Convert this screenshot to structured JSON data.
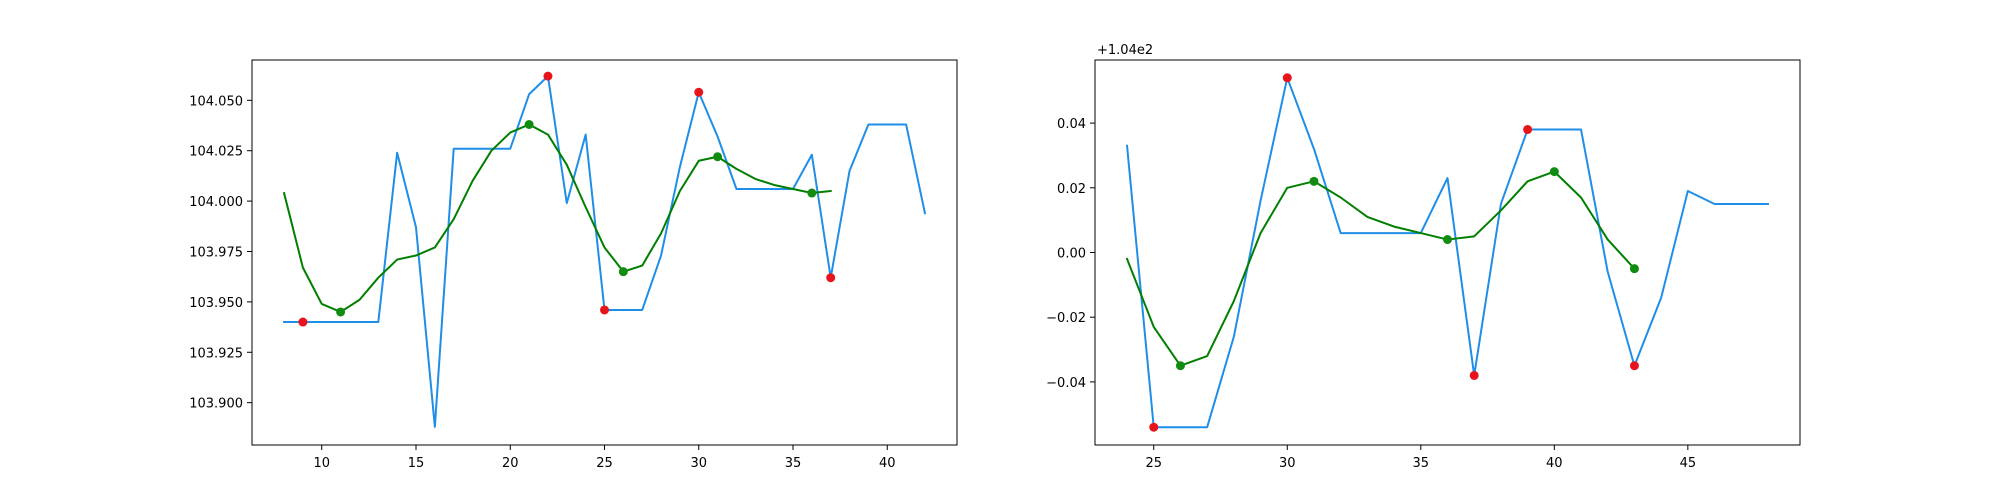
{
  "chart_data": [
    {
      "type": "line",
      "title": "",
      "xlabel": "",
      "ylabel": "",
      "offset_text": "",
      "xlim": [
        6.3,
        43.7
      ],
      "ylim": [
        103.879,
        104.07
      ],
      "xticks": [
        10,
        15,
        20,
        25,
        30,
        35,
        40
      ],
      "yticks": [
        103.9,
        103.925,
        103.95,
        103.975,
        104.0,
        104.025,
        104.05
      ],
      "ytick_labels": [
        "103.900",
        "103.925",
        "103.950",
        "103.975",
        "104.000",
        "104.025",
        "104.050"
      ],
      "grid": false,
      "legend": "none",
      "series": [
        {
          "kind": "line",
          "color": "#1f8ee8",
          "x": [
            8,
            9,
            10,
            11,
            12,
            13,
            14,
            15,
            16,
            17,
            18,
            19,
            20,
            21,
            22,
            23,
            24,
            25,
            26,
            27,
            28,
            29,
            30,
            31,
            32,
            33,
            34,
            35,
            36,
            37,
            38,
            39,
            40,
            41,
            42
          ],
          "y": [
            103.94,
            103.94,
            103.94,
            103.94,
            103.94,
            103.94,
            104.024,
            103.987,
            103.888,
            104.026,
            104.026,
            104.026,
            104.026,
            104.053,
            104.062,
            103.999,
            104.033,
            103.946,
            103.946,
            103.946,
            103.973,
            104.017,
            104.054,
            104.032,
            104.006,
            104.006,
            104.006,
            104.006,
            104.023,
            103.962,
            104.015,
            104.038,
            104.038,
            104.038,
            103.994
          ]
        },
        {
          "kind": "line",
          "color": "#007f00",
          "x": [
            8,
            9,
            10,
            11,
            12,
            13,
            14,
            15,
            16,
            17,
            18,
            19,
            20,
            21,
            22,
            23,
            24,
            25,
            26,
            27,
            28,
            29,
            30,
            31,
            32,
            33,
            34,
            35,
            36,
            37
          ],
          "y": [
            104.004,
            103.967,
            103.949,
            103.945,
            103.951,
            103.962,
            103.971,
            103.973,
            103.977,
            103.991,
            104.01,
            104.025,
            104.034,
            104.038,
            104.033,
            104.018,
            103.997,
            103.977,
            103.965,
            103.968,
            103.984,
            104.005,
            104.02,
            104.022,
            104.016,
            104.011,
            104.008,
            104.006,
            104.004,
            104.005
          ]
        },
        {
          "kind": "scatter",
          "color": "#e8141c",
          "x": [
            9,
            22,
            25,
            30,
            37
          ],
          "y": [
            103.94,
            104.062,
            103.946,
            104.054,
            103.962
          ]
        },
        {
          "kind": "scatter",
          "color": "#118c11",
          "x": [
            11,
            21,
            26,
            31,
            36
          ],
          "y": [
            103.945,
            104.038,
            103.965,
            104.022,
            104.004
          ]
        }
      ]
    },
    {
      "type": "line",
      "title": "",
      "xlabel": "",
      "ylabel": "",
      "offset_text": "+1.04e2",
      "xlim": [
        22.8,
        49.2
      ],
      "ylim": [
        -0.0595,
        0.0595
      ],
      "xticks": [
        25,
        30,
        35,
        40,
        45
      ],
      "yticks": [
        -0.04,
        -0.02,
        0.0,
        0.02,
        0.04
      ],
      "ytick_labels": [
        "−0.04",
        "−0.02",
        "0.00",
        "0.02",
        "0.04"
      ],
      "grid": false,
      "legend": "none",
      "series": [
        {
          "kind": "line",
          "color": "#1f8ee8",
          "x": [
            24,
            25,
            26,
            27,
            28,
            29,
            30,
            31,
            32,
            33,
            34,
            35,
            36,
            37,
            38,
            39,
            40,
            41,
            42,
            43,
            44,
            45,
            46,
            47,
            48
          ],
          "y": [
            0.033,
            -0.054,
            -0.054,
            -0.054,
            -0.026,
            0.016,
            0.054,
            0.032,
            0.006,
            0.006,
            0.006,
            0.006,
            0.023,
            -0.038,
            0.015,
            0.038,
            0.038,
            0.038,
            -0.006,
            -0.035,
            -0.014,
            0.019,
            0.015,
            0.015,
            0.015
          ]
        },
        {
          "kind": "line",
          "color": "#007f00",
          "x": [
            24,
            25,
            26,
            27,
            28,
            29,
            30,
            31,
            32,
            33,
            34,
            35,
            36,
            37,
            38,
            39,
            40,
            41,
            42,
            43
          ],
          "y": [
            -0.002,
            -0.023,
            -0.035,
            -0.032,
            -0.015,
            0.006,
            0.02,
            0.022,
            0.017,
            0.011,
            0.008,
            0.006,
            0.004,
            0.005,
            0.013,
            0.022,
            0.025,
            0.017,
            0.004,
            -0.005
          ]
        },
        {
          "kind": "scatter",
          "color": "#e8141c",
          "x": [
            25,
            30,
            37,
            39,
            43
          ],
          "y": [
            -0.054,
            0.054,
            -0.038,
            0.038,
            -0.035
          ]
        },
        {
          "kind": "scatter",
          "color": "#118c11",
          "x": [
            26,
            31,
            36,
            40,
            43
          ],
          "y": [
            -0.035,
            0.022,
            0.004,
            0.025,
            -0.005
          ]
        }
      ]
    }
  ]
}
